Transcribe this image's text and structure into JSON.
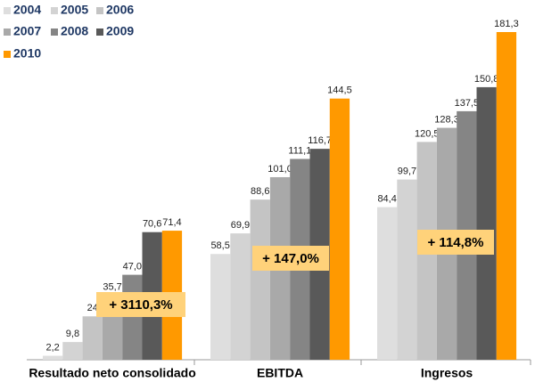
{
  "chart_data": {
    "type": "bar",
    "categories": [
      "Resultado neto consolidado",
      "EBITDA",
      "Ingresos"
    ],
    "series": [
      {
        "name": "2004",
        "color": "#dedede",
        "values": [
          2.2,
          58.5,
          84.4
        ],
        "value_labels": [
          "2,2",
          "58,5",
          "84,4"
        ]
      },
      {
        "name": "2005",
        "color": "#d3d3d3",
        "values": [
          9.8,
          69.9,
          99.7
        ],
        "value_labels": [
          "9,8",
          "69,9",
          "99,7"
        ]
      },
      {
        "name": "2006",
        "color": "#c4c4c4",
        "values": [
          24,
          88.6,
          120.5
        ],
        "value_labels": [
          "24",
          "88,6",
          "120,5"
        ]
      },
      {
        "name": "2007",
        "color": "#a9a9a9",
        "values": [
          35.7,
          101.0,
          128.3
        ],
        "value_labels": [
          "35,7",
          "101,0",
          "128,3"
        ]
      },
      {
        "name": "2008",
        "color": "#858585",
        "values": [
          47.0,
          111.1,
          137.5
        ],
        "value_labels": [
          "47,0",
          "111,1",
          "137,5"
        ]
      },
      {
        "name": "2009",
        "color": "#595959",
        "values": [
          70.6,
          116.7,
          150.8
        ],
        "value_labels": [
          "70,6",
          "116,7",
          "150,8"
        ]
      },
      {
        "name": "2010",
        "color": "#ff9900",
        "values": [
          71.4,
          144.5,
          181.3
        ],
        "value_labels": [
          "71,4",
          "144,5",
          "181,3"
        ]
      }
    ],
    "annotations": [
      "+ 3110,3%",
      "+ 147,0%",
      "+ 114,8%"
    ]
  }
}
